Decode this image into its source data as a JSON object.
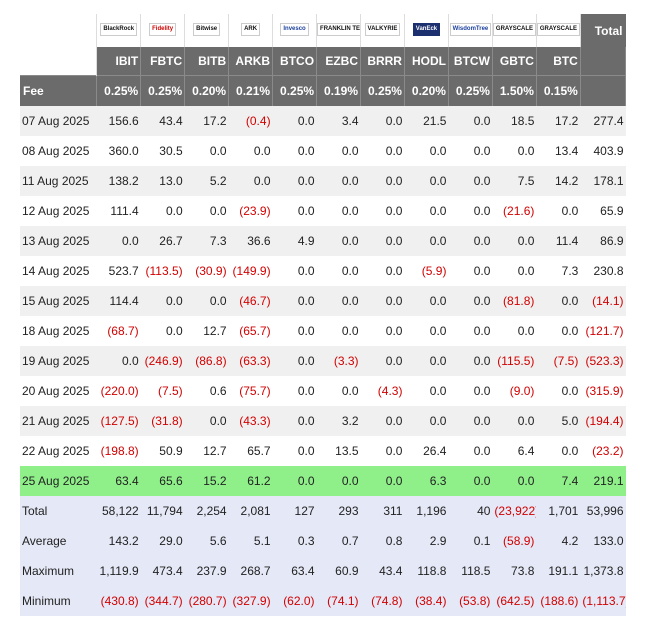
{
  "header": {
    "issuers": [
      "BlackRock",
      "Fidelity",
      "Bitwise",
      "ARK",
      "Invesco",
      "FRANKLIN TEMPLETON",
      "VALKYRIE",
      "VanEck",
      "WisdomTree",
      "GRAYSCALE",
      "GRAYSCALE"
    ],
    "total_label": "Total",
    "tickers": [
      "IBIT",
      "FBTC",
      "BITB",
      "ARKB",
      "BTCO",
      "EZBC",
      "BRRR",
      "HODL",
      "BTCW",
      "GBTC",
      "BTC"
    ],
    "fee_label": "Fee",
    "fees": [
      "0.25%",
      "0.25%",
      "0.20%",
      "0.21%",
      "0.25%",
      "0.19%",
      "0.25%",
      "0.20%",
      "0.25%",
      "1.50%",
      "0.15%"
    ]
  },
  "rows": [
    {
      "date": "07 Aug 2025",
      "values": [
        "156.6",
        "43.4",
        "17.2",
        "(0.4)",
        "0.0",
        "3.4",
        "0.0",
        "21.5",
        "0.0",
        "18.5",
        "17.2"
      ],
      "total": "277.4"
    },
    {
      "date": "08 Aug 2025",
      "values": [
        "360.0",
        "30.5",
        "0.0",
        "0.0",
        "0.0",
        "0.0",
        "0.0",
        "0.0",
        "0.0",
        "0.0",
        "13.4"
      ],
      "total": "403.9"
    },
    {
      "date": "11 Aug 2025",
      "values": [
        "138.2",
        "13.0",
        "5.2",
        "0.0",
        "0.0",
        "0.0",
        "0.0",
        "0.0",
        "0.0",
        "7.5",
        "14.2"
      ],
      "total": "178.1"
    },
    {
      "date": "12 Aug 2025",
      "values": [
        "111.4",
        "0.0",
        "0.0",
        "(23.9)",
        "0.0",
        "0.0",
        "0.0",
        "0.0",
        "0.0",
        "(21.6)",
        "0.0"
      ],
      "total": "65.9"
    },
    {
      "date": "13 Aug 2025",
      "values": [
        "0.0",
        "26.7",
        "7.3",
        "36.6",
        "4.9",
        "0.0",
        "0.0",
        "0.0",
        "0.0",
        "0.0",
        "11.4"
      ],
      "total": "86.9"
    },
    {
      "date": "14 Aug 2025",
      "values": [
        "523.7",
        "(113.5)",
        "(30.9)",
        "(149.9)",
        "0.0",
        "0.0",
        "0.0",
        "(5.9)",
        "0.0",
        "0.0",
        "7.3"
      ],
      "total": "230.8"
    },
    {
      "date": "15 Aug 2025",
      "values": [
        "114.4",
        "0.0",
        "0.0",
        "(46.7)",
        "0.0",
        "0.0",
        "0.0",
        "0.0",
        "0.0",
        "(81.8)",
        "0.0"
      ],
      "total": "(14.1)"
    },
    {
      "date": "18 Aug 2025",
      "values": [
        "(68.7)",
        "0.0",
        "12.7",
        "(65.7)",
        "0.0",
        "0.0",
        "0.0",
        "0.0",
        "0.0",
        "0.0",
        "0.0"
      ],
      "total": "(121.7)"
    },
    {
      "date": "19 Aug 2025",
      "values": [
        "0.0",
        "(246.9)",
        "(86.8)",
        "(63.3)",
        "0.0",
        "(3.3)",
        "0.0",
        "0.0",
        "0.0",
        "(115.5)",
        "(7.5)"
      ],
      "total": "(523.3)"
    },
    {
      "date": "20 Aug 2025",
      "values": [
        "(220.0)",
        "(7.5)",
        "0.6",
        "(75.7)",
        "0.0",
        "0.0",
        "(4.3)",
        "0.0",
        "0.0",
        "(9.0)",
        "0.0"
      ],
      "total": "(315.9)"
    },
    {
      "date": "21 Aug 2025",
      "values": [
        "(127.5)",
        "(31.8)",
        "0.0",
        "(43.3)",
        "0.0",
        "3.2",
        "0.0",
        "0.0",
        "0.0",
        "0.0",
        "5.0"
      ],
      "total": "(194.4)"
    },
    {
      "date": "22 Aug 2025",
      "values": [
        "(198.8)",
        "50.9",
        "12.7",
        "65.7",
        "0.0",
        "13.5",
        "0.0",
        "26.4",
        "0.0",
        "6.4",
        "0.0"
      ],
      "total": "(23.2)"
    },
    {
      "date": "25 Aug 2025",
      "values": [
        "63.4",
        "65.6",
        "15.2",
        "61.2",
        "0.0",
        "0.0",
        "0.0",
        "6.3",
        "0.0",
        "0.0",
        "7.4"
      ],
      "total": "219.1",
      "highlight": true
    }
  ],
  "summary": [
    {
      "label": "Total",
      "values": [
        "58,122",
        "11,794",
        "2,254",
        "2,081",
        "127",
        "293",
        "311",
        "1,196",
        "40",
        "(23,922)",
        "1,701"
      ],
      "total": "53,996"
    },
    {
      "label": "Average",
      "values": [
        "143.2",
        "29.0",
        "5.6",
        "5.1",
        "0.3",
        "0.7",
        "0.8",
        "2.9",
        "0.1",
        "(58.9)",
        "4.2"
      ],
      "total": "133.0"
    },
    {
      "label": "Maximum",
      "values": [
        "1,119.9",
        "473.4",
        "237.9",
        "268.7",
        "63.4",
        "60.9",
        "43.4",
        "118.8",
        "118.5",
        "73.8",
        "191.1"
      ],
      "total": "1,373.8"
    },
    {
      "label": "Minimum",
      "values": [
        "(430.8)",
        "(344.7)",
        "(280.7)",
        "(327.9)",
        "(62.0)",
        "(74.1)",
        "(74.8)",
        "(38.4)",
        "(53.8)",
        "(642.5)",
        "(188.6)"
      ],
      "total": "(1,113.7)"
    }
  ],
  "colors": {
    "header_bg": "#6b6b6b",
    "alt_row": "#f0f0f0",
    "highlight_row": "#8ff08a",
    "summary_bg": "#e5e8f6",
    "negative": "#d20000"
  }
}
